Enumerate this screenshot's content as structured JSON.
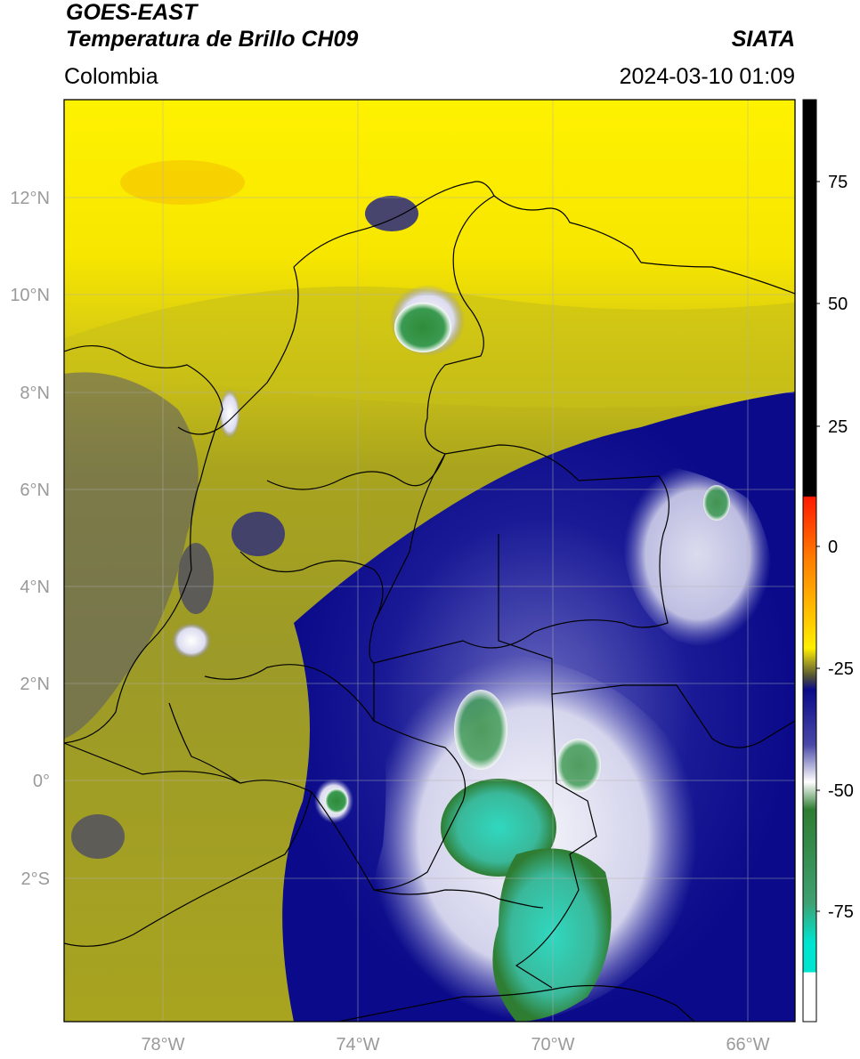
{
  "header": {
    "satellite": "GOES-EAST",
    "product": "Temperatura de Brillo CH09",
    "agency": "SIATA",
    "region": "Colombia",
    "datetime": "2024-03-10 01:09"
  },
  "axes": {
    "lat_ticks": [
      "12°N",
      "10°N",
      "8°N",
      "6°N",
      "4°N",
      "2°N",
      "0°",
      "2°S"
    ],
    "lon_ticks": [
      "78°W",
      "74°W",
      "70°W",
      "66°W"
    ]
  },
  "colorbar": {
    "ticks": [
      "75",
      "50",
      "25",
      "0",
      "-25",
      "-50",
      "-75"
    ],
    "colors": {
      "black": "#000000",
      "red": "#ff1a00",
      "orange": "#ff9900",
      "yellow": "#ffee00",
      "olive": "#a8a020",
      "navy": "#0a0a8a",
      "white": "#ffffff",
      "green": "#2e7d32",
      "cyan": "#00e5d0"
    }
  }
}
